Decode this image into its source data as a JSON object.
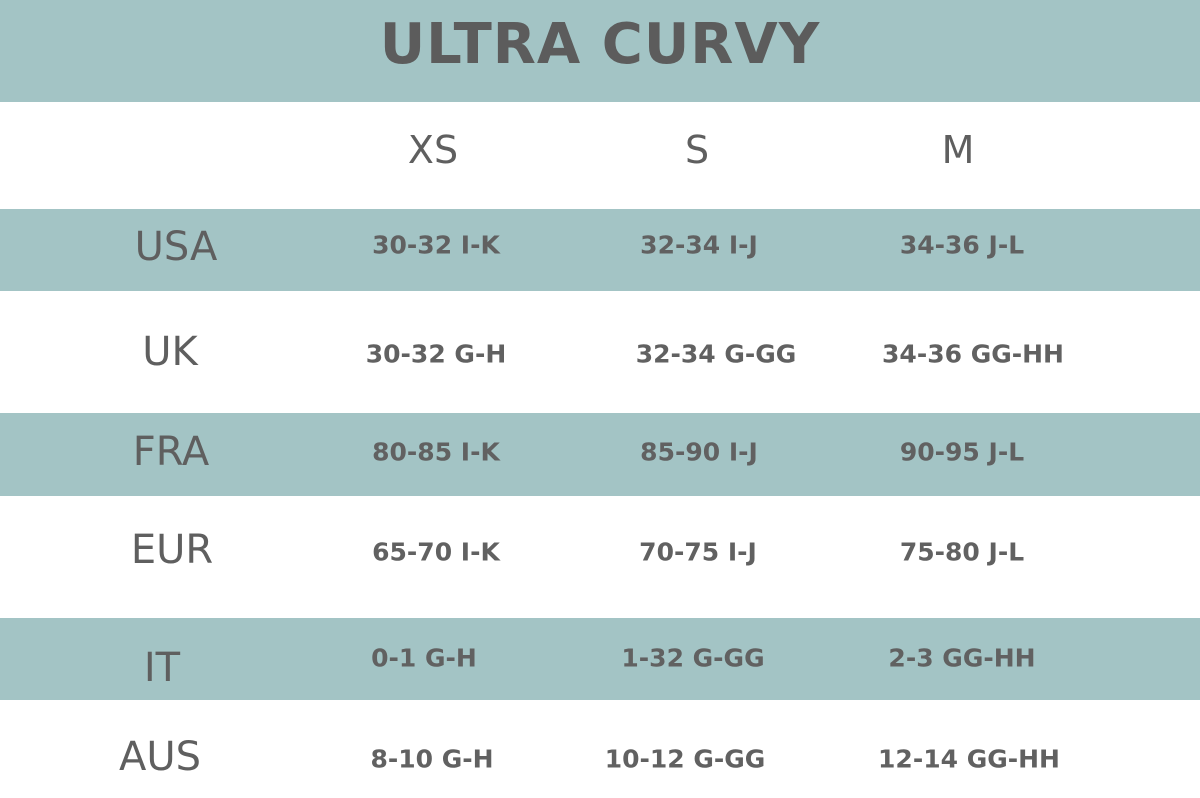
{
  "title": "ULTRA CURVY",
  "colors": {
    "band": "#a3c4c5",
    "text": "#5f5f5f",
    "background": "#ffffff"
  },
  "columns": [
    "XS",
    "S",
    "M"
  ],
  "rows": [
    {
      "label": "USA",
      "values": [
        "30-32 I-K",
        "32-34 I-J",
        "34-36 J-L"
      ]
    },
    {
      "label": "UK",
      "values": [
        "30-32 G-H",
        "32-34 G-GG",
        "34-36 GG-HH"
      ]
    },
    {
      "label": "FRA",
      "values": [
        "80-85 I-K",
        "85-90 I-J",
        "90-95 J-L"
      ]
    },
    {
      "label": "EUR",
      "values": [
        "65-70 I-K",
        "70-75 I-J",
        "75-80 J-L"
      ]
    },
    {
      "label": "IT",
      "values": [
        "0-1 G-H",
        "1-32 G-GG",
        "2-3 GG-HH"
      ]
    },
    {
      "label": "AUS",
      "values": [
        "8-10 G-H",
        "10-12 G-GG",
        "12-14 GG-HH"
      ]
    }
  ]
}
